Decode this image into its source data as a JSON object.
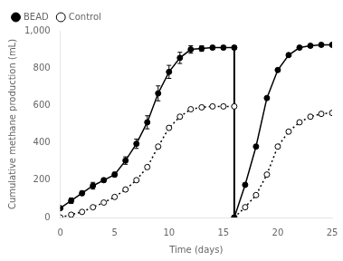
{
  "chart_data": {
    "type": "line",
    "title": "",
    "xlabel": "Time (days)",
    "ylabel": "Cumulative methane production (mL)",
    "xlim": [
      0,
      25
    ],
    "ylim": [
      0,
      1000
    ],
    "xticks": [
      0,
      5,
      10,
      15,
      20,
      25
    ],
    "yticks": [
      0,
      200,
      400,
      600,
      800,
      1000
    ],
    "grid": false,
    "legend": "upper left",
    "series": [
      {
        "name": "BEAD",
        "color": "#000000",
        "marker": "circle",
        "line_style": "solid",
        "x": [
          0,
          1,
          2,
          3,
          4,
          5,
          6,
          7,
          8,
          9,
          10,
          11,
          12,
          13,
          14,
          15,
          16
        ],
        "values": [
          50,
          90,
          130,
          170,
          200,
          230,
          305,
          395,
          510,
          665,
          780,
          855,
          900,
          905,
          910,
          910,
          910
        ],
        "errors": [
          0,
          15,
          12,
          18,
          10,
          12,
          20,
          25,
          35,
          40,
          35,
          30,
          20,
          15,
          10,
          10,
          10
        ]
      },
      {
        "name": "BEAD",
        "color": "#000000",
        "marker": "circle",
        "line_style": "solid",
        "x": [
          16,
          17,
          18,
          19,
          20,
          21,
          22,
          23,
          24,
          25
        ],
        "values": [
          0,
          175,
          380,
          640,
          790,
          870,
          910,
          920,
          925,
          925
        ]
      },
      {
        "name": "Control",
        "color": "#000000",
        "marker": "circle_open",
        "line_style": "dotted",
        "x": [
          0,
          1,
          2,
          3,
          4,
          5,
          6,
          7,
          8,
          9,
          10,
          11,
          12,
          13,
          14,
          15,
          16
        ],
        "values": [
          0,
          15,
          30,
          55,
          80,
          110,
          150,
          200,
          270,
          380,
          480,
          540,
          580,
          590,
          595,
          595,
          595
        ]
      },
      {
        "name": "Control",
        "color": "#000000",
        "marker": "circle_open",
        "line_style": "dotted",
        "x": [
          16,
          17,
          18,
          19,
          20,
          21,
          22,
          23,
          24,
          25
        ],
        "values": [
          0,
          55,
          120,
          230,
          380,
          460,
          510,
          540,
          555,
          560
        ]
      }
    ],
    "drop_line": {
      "x": 16,
      "y": [
        0,
        910
      ],
      "color": "#000000"
    }
  }
}
